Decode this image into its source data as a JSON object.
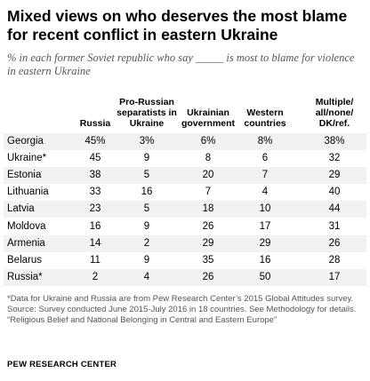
{
  "title": "Mixed views on who deserves the most blame for recent conflict in eastern Ukraine",
  "subtitle": "% in each former Soviet republic who say _____ is most to blame for violence in eastern Ukraine",
  "chart_data": {
    "type": "table",
    "columns": [
      "Russia",
      "Pro-Russian separatists in Ukraine",
      "Ukrainian government",
      "Western countries",
      "Multiple/ all/none/ DK/ref."
    ],
    "rows": [
      {
        "country": "Georgia",
        "values": [
          "45%",
          "3%",
          "6%",
          "8%",
          "38%"
        ]
      },
      {
        "country": "Ukraine*",
        "values": [
          "45",
          "9",
          "8",
          "6",
          "32"
        ]
      },
      {
        "country": "Estonia",
        "values": [
          "38",
          "5",
          "20",
          "7",
          "29"
        ]
      },
      {
        "country": "Lithuania",
        "values": [
          "33",
          "16",
          "7",
          "4",
          "40"
        ]
      },
      {
        "country": "Latvia",
        "values": [
          "23",
          "5",
          "18",
          "10",
          "44"
        ]
      },
      {
        "country": "Moldova",
        "values": [
          "16",
          "9",
          "26",
          "17",
          "31"
        ]
      },
      {
        "country": "Armenia",
        "values": [
          "14",
          "2",
          "29",
          "29",
          "26"
        ]
      },
      {
        "country": "Belarus",
        "values": [
          "11",
          "9",
          "35",
          "16",
          "28"
        ]
      },
      {
        "country": "Russia*",
        "values": [
          "2",
          "4",
          "26",
          "50",
          "17"
        ]
      }
    ]
  },
  "notes": [
    "*Data for Ukraine and Russia are from Pew Research Center’s 2015 Global Attitudes survey.",
    "Source: Survey conducted June 2015-July 2016 in 18 countries. See Methodology for details.",
    "“Religious Belief and National Belonging in Central and Eastern Europe”"
  ],
  "brand": "PEW RESEARCH CENTER",
  "colors": {
    "shade": "#f2f2f2",
    "note_text": "#555555"
  }
}
